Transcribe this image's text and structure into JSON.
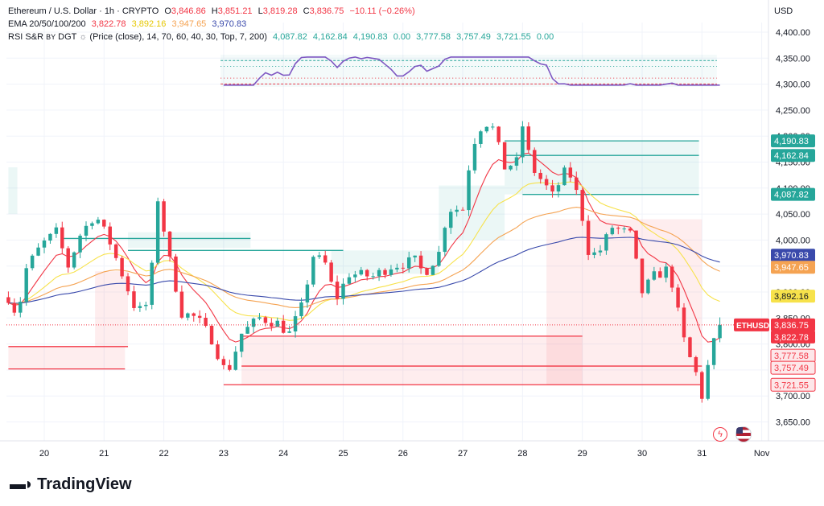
{
  "legend": {
    "symbol": "Ethereum / U.S. Dollar · 1h · CRYPTO",
    "o_label": "O",
    "o": "3,846.86",
    "h_label": "H",
    "h": "3,851.21",
    "l_label": "L",
    "l": "3,819.28",
    "c_label": "C",
    "c": "3,836.75",
    "change": "−10.11 (−0.26%)",
    "ema_label": "EMA 20/50/100/200",
    "ema_values": [
      "3,822.78",
      "3,892.16",
      "3,947.65",
      "3,970.83"
    ],
    "sr_label": "RSI S&R",
    "sr_by": "BY",
    "sr_author": "DGT",
    "sr_params": "(Price (close), 14, 70, 60, 40, 30, Top, 7, 200)",
    "sr_values": [
      "4,087.82",
      "4,162.84",
      "4,190.83",
      "0.00",
      "3,777.58",
      "3,757.49",
      "3,721.55",
      "0.00"
    ]
  },
  "currency": "USD",
  "brand": "TradingView",
  "icons": [
    "lightning-icon",
    "us-flag-icon",
    "tradingview-logo-icon"
  ],
  "colors": {
    "up": "#26a69a",
    "down": "#f23645",
    "ema20": "#f23645",
    "ema50": "#f7e24b",
    "ema100": "#f5a352",
    "ema200": "#3949ab",
    "rsi": "#7e57c2",
    "support": "#26a69a",
    "resistance": "#f23645",
    "ema_legend": [
      "#f23645",
      "#e6c700",
      "#f5a352",
      "#3949ab"
    ]
  },
  "chart_data": {
    "type": "candlestick",
    "timeframe": "1h",
    "y_axis": {
      "min": 3620,
      "max": 4440,
      "ticks": [
        "4,400.00",
        "4,350.00",
        "4,300.00",
        "4,250.00",
        "4,200.00",
        "4,150.00",
        "4,100.00",
        "4,050.00",
        "4,000.00",
        "3,950.00",
        "3,900.00",
        "3,850.00",
        "3,800.00",
        "3,750.00",
        "3,700.00",
        "3,650.00"
      ],
      "tick_values": [
        4400,
        4350,
        4300,
        4250,
        4200,
        4150,
        4100,
        4050,
        4000,
        3950,
        3900,
        3850,
        3800,
        3750,
        3700,
        3650
      ]
    },
    "x_axis": {
      "labels": [
        "20",
        "21",
        "22",
        "23",
        "24",
        "25",
        "26",
        "27",
        "28",
        "29",
        "30",
        "31",
        "Nov"
      ],
      "days": [
        0,
        1,
        2,
        3,
        4,
        5,
        6,
        7,
        8,
        9,
        10,
        11,
        12
      ],
      "range_days": [
        -0.6,
        12.1
      ]
    },
    "price_labels": [
      {
        "text": "4,190.83",
        "value": 4190.83,
        "kind": "support"
      },
      {
        "text": "4,162.84",
        "value": 4162.84,
        "kind": "support"
      },
      {
        "text": "4,087.82",
        "value": 4087.82,
        "kind": "support"
      },
      {
        "text": "3,970.83",
        "value": 3970.83,
        "kind": "ema200"
      },
      {
        "text": "3,947.65",
        "value": 3947.65,
        "kind": "ema100"
      },
      {
        "text": "3,892.16",
        "value": 3892.16,
        "kind": "ema50"
      },
      {
        "text": "3,836.75",
        "value": 3836.75,
        "kind": "last",
        "tag": "ETHUSD"
      },
      {
        "text": "3,822.78",
        "value": 3822.78,
        "kind": "ema20"
      },
      {
        "text": "3,777.58",
        "value": 3777.58,
        "kind": "resistance"
      },
      {
        "text": "3,757.49",
        "value": 3757.49,
        "kind": "resistance"
      },
      {
        "text": "3,721.55",
        "value": 3721.55,
        "kind": "resistance"
      }
    ],
    "sr_levels": [
      {
        "value": 4190.83,
        "kind": "support",
        "from_day": 7.7,
        "to_day": 10.95
      },
      {
        "value": 4162.84,
        "kind": "support",
        "from_day": 7.7,
        "to_day": 10.95
      },
      {
        "value": 4087.82,
        "kind": "support",
        "from_day": 8.0,
        "to_day": 10.95
      },
      {
        "value": 4003,
        "kind": "support",
        "from_day": 0.3,
        "to_day": 3.45
      },
      {
        "value": 3980,
        "kind": "support",
        "from_day": 1.4,
        "to_day": 5.0
      },
      {
        "value": 3815,
        "kind": "resistance",
        "from_day": 3.3,
        "to_day": 9.0
      },
      {
        "value": 3757.49,
        "kind": "resistance",
        "from_day": 3.3,
        "to_day": 11.0
      },
      {
        "value": 3721.55,
        "kind": "resistance",
        "from_day": 3.0,
        "to_day": 11.0
      },
      {
        "value": 3795,
        "kind": "resistance",
        "from_day": -0.6,
        "to_day": 1.4
      },
      {
        "value": 3752,
        "kind": "resistance",
        "from_day": -0.6,
        "to_day": 1.35
      }
    ],
    "key_points": [
      {
        "day": -0.6,
        "price": 3890
      },
      {
        "day": -0.45,
        "price": 3855
      },
      {
        "day": -0.3,
        "price": 3945
      },
      {
        "day": -0.05,
        "price": 3990
      },
      {
        "day": 0.2,
        "price": 4015
      },
      {
        "day": 0.4,
        "price": 3950
      },
      {
        "day": 0.6,
        "price": 4010
      },
      {
        "day": 0.85,
        "price": 4050
      },
      {
        "day": 1.1,
        "price": 3995
      },
      {
        "day": 1.35,
        "price": 3920
      },
      {
        "day": 1.55,
        "price": 3860
      },
      {
        "day": 1.75,
        "price": 3880
      },
      {
        "day": 1.9,
        "price": 4080
      },
      {
        "day": 2.1,
        "price": 3960
      },
      {
        "day": 2.3,
        "price": 3860
      },
      {
        "day": 2.55,
        "price": 3850
      },
      {
        "day": 2.8,
        "price": 3810
      },
      {
        "day": 3.05,
        "price": 3740
      },
      {
        "day": 3.3,
        "price": 3820
      },
      {
        "day": 3.6,
        "price": 3850
      },
      {
        "day": 3.9,
        "price": 3840
      },
      {
        "day": 4.1,
        "price": 3820
      },
      {
        "day": 4.3,
        "price": 3870
      },
      {
        "day": 4.5,
        "price": 3970
      },
      {
        "day": 4.75,
        "price": 3950
      },
      {
        "day": 4.85,
        "price": 3880
      },
      {
        "day": 5.1,
        "price": 3935
      },
      {
        "day": 5.5,
        "price": 3930
      },
      {
        "day": 5.8,
        "price": 3950
      },
      {
        "day": 6.2,
        "price": 3960
      },
      {
        "day": 6.35,
        "price": 3935
      },
      {
        "day": 6.6,
        "price": 3975
      },
      {
        "day": 6.75,
        "price": 4060
      },
      {
        "day": 7.0,
        "price": 4060
      },
      {
        "day": 7.15,
        "price": 4180
      },
      {
        "day": 7.35,
        "price": 4230
      },
      {
        "day": 7.5,
        "price": 4215
      },
      {
        "day": 7.7,
        "price": 4140
      },
      {
        "day": 7.9,
        "price": 4150
      },
      {
        "day": 8.0,
        "price": 4220
      },
      {
        "day": 8.15,
        "price": 4140
      },
      {
        "day": 8.35,
        "price": 4110
      },
      {
        "day": 8.5,
        "price": 4085
      },
      {
        "day": 8.75,
        "price": 4140
      },
      {
        "day": 8.95,
        "price": 4075
      },
      {
        "day": 9.1,
        "price": 3980
      },
      {
        "day": 9.25,
        "price": 3970
      },
      {
        "day": 9.5,
        "price": 4025
      },
      {
        "day": 9.8,
        "price": 4010
      },
      {
        "day": 10.0,
        "price": 3900
      },
      {
        "day": 10.2,
        "price": 3930
      },
      {
        "day": 10.45,
        "price": 3945
      },
      {
        "day": 10.6,
        "price": 3860
      },
      {
        "day": 10.75,
        "price": 3780
      },
      {
        "day": 10.85,
        "price": 3765
      },
      {
        "day": 11.0,
        "price": 3700
      },
      {
        "day": 11.15,
        "price": 3785
      },
      {
        "day": 11.3,
        "price": 3837
      }
    ]
  }
}
